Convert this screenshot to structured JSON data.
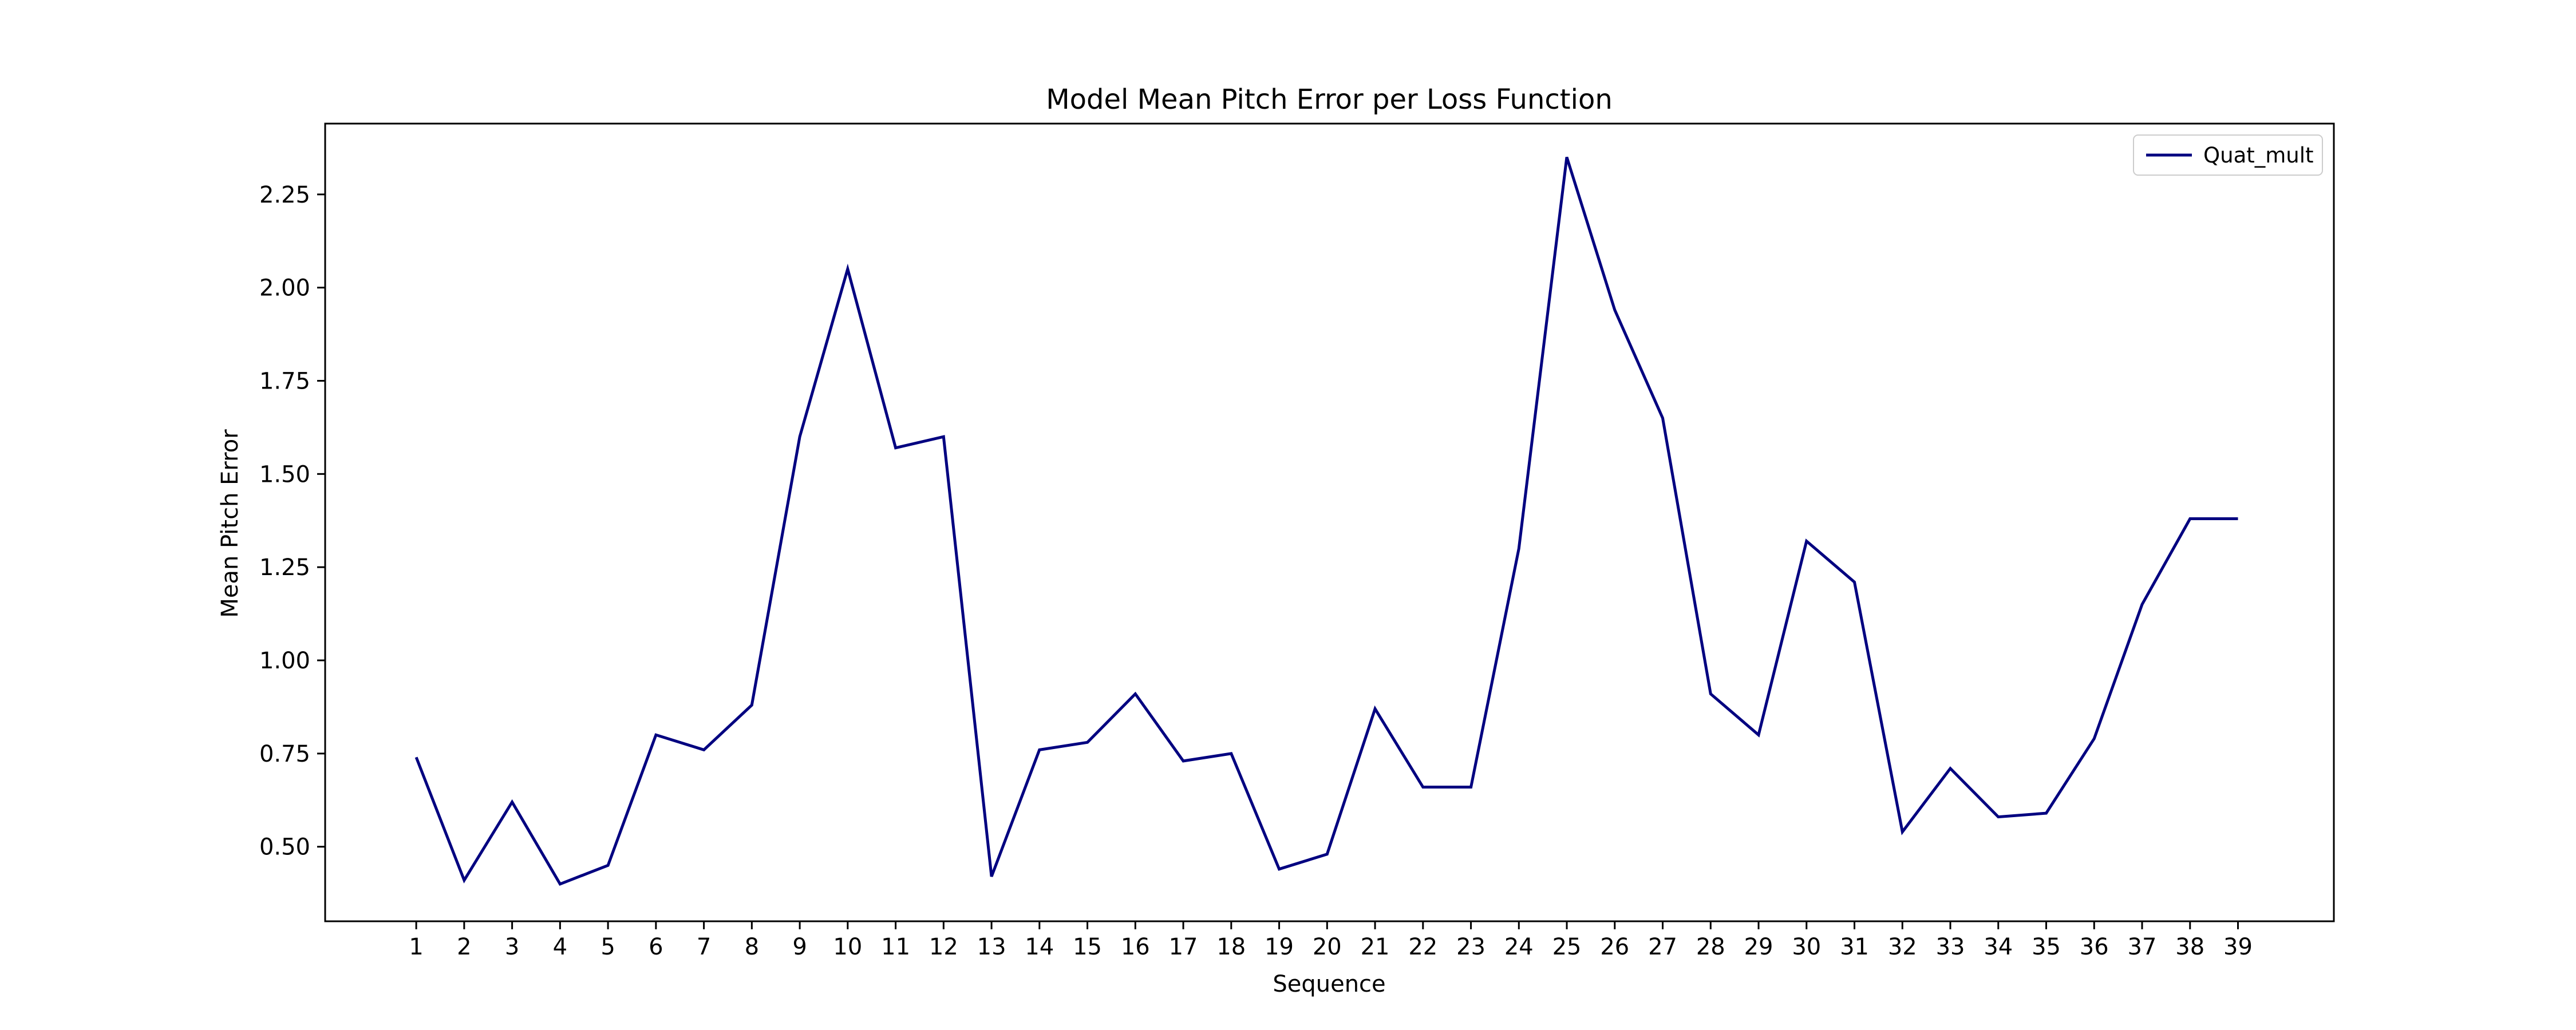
{
  "chart_data": {
    "type": "line",
    "title": "Model Mean Pitch Error per Loss Function",
    "xlabel": "Sequence",
    "ylabel": "Mean Pitch Error",
    "x": [
      1,
      2,
      3,
      4,
      5,
      6,
      7,
      8,
      9,
      10,
      11,
      12,
      13,
      14,
      15,
      16,
      17,
      18,
      19,
      20,
      21,
      22,
      23,
      24,
      25,
      26,
      27,
      28,
      29,
      30,
      31,
      32,
      33,
      34,
      35,
      36,
      37,
      38,
      39
    ],
    "x_tick_labels": [
      "1",
      "2",
      "3",
      "4",
      "5",
      "6",
      "7",
      "8",
      "9",
      "10",
      "11",
      "12",
      "13",
      "14",
      "15",
      "16",
      "17",
      "18",
      "19",
      "20",
      "21",
      "22",
      "23",
      "24",
      "25",
      "26",
      "27",
      "28",
      "29",
      "30",
      "31",
      "32",
      "33",
      "34",
      "35",
      "36",
      "37",
      "38",
      "39"
    ],
    "xlim": [
      -0.9,
      41.0
    ],
    "ylim": [
      0.3,
      2.44
    ],
    "y_ticks": [
      0.5,
      0.75,
      1.0,
      1.25,
      1.5,
      1.75,
      2.0,
      2.25
    ],
    "y_tick_labels": [
      "0.50",
      "0.75",
      "1.00",
      "1.25",
      "1.50",
      "1.75",
      "2.00",
      "2.25"
    ],
    "grid": false,
    "legend_position": "top-right",
    "series": [
      {
        "name": "Quat_mult",
        "color": "#000080",
        "values": [
          0.74,
          0.41,
          0.62,
          0.4,
          0.45,
          0.8,
          0.76,
          0.88,
          1.6,
          2.05,
          1.57,
          1.6,
          0.42,
          0.76,
          0.78,
          0.91,
          0.73,
          0.75,
          0.44,
          0.48,
          0.87,
          0.66,
          0.66,
          1.3,
          2.35,
          1.94,
          1.65,
          0.91,
          0.8,
          1.32,
          1.21,
          0.54,
          0.71,
          0.58,
          0.59,
          0.79,
          1.15,
          1.38,
          1.38
        ]
      }
    ]
  }
}
